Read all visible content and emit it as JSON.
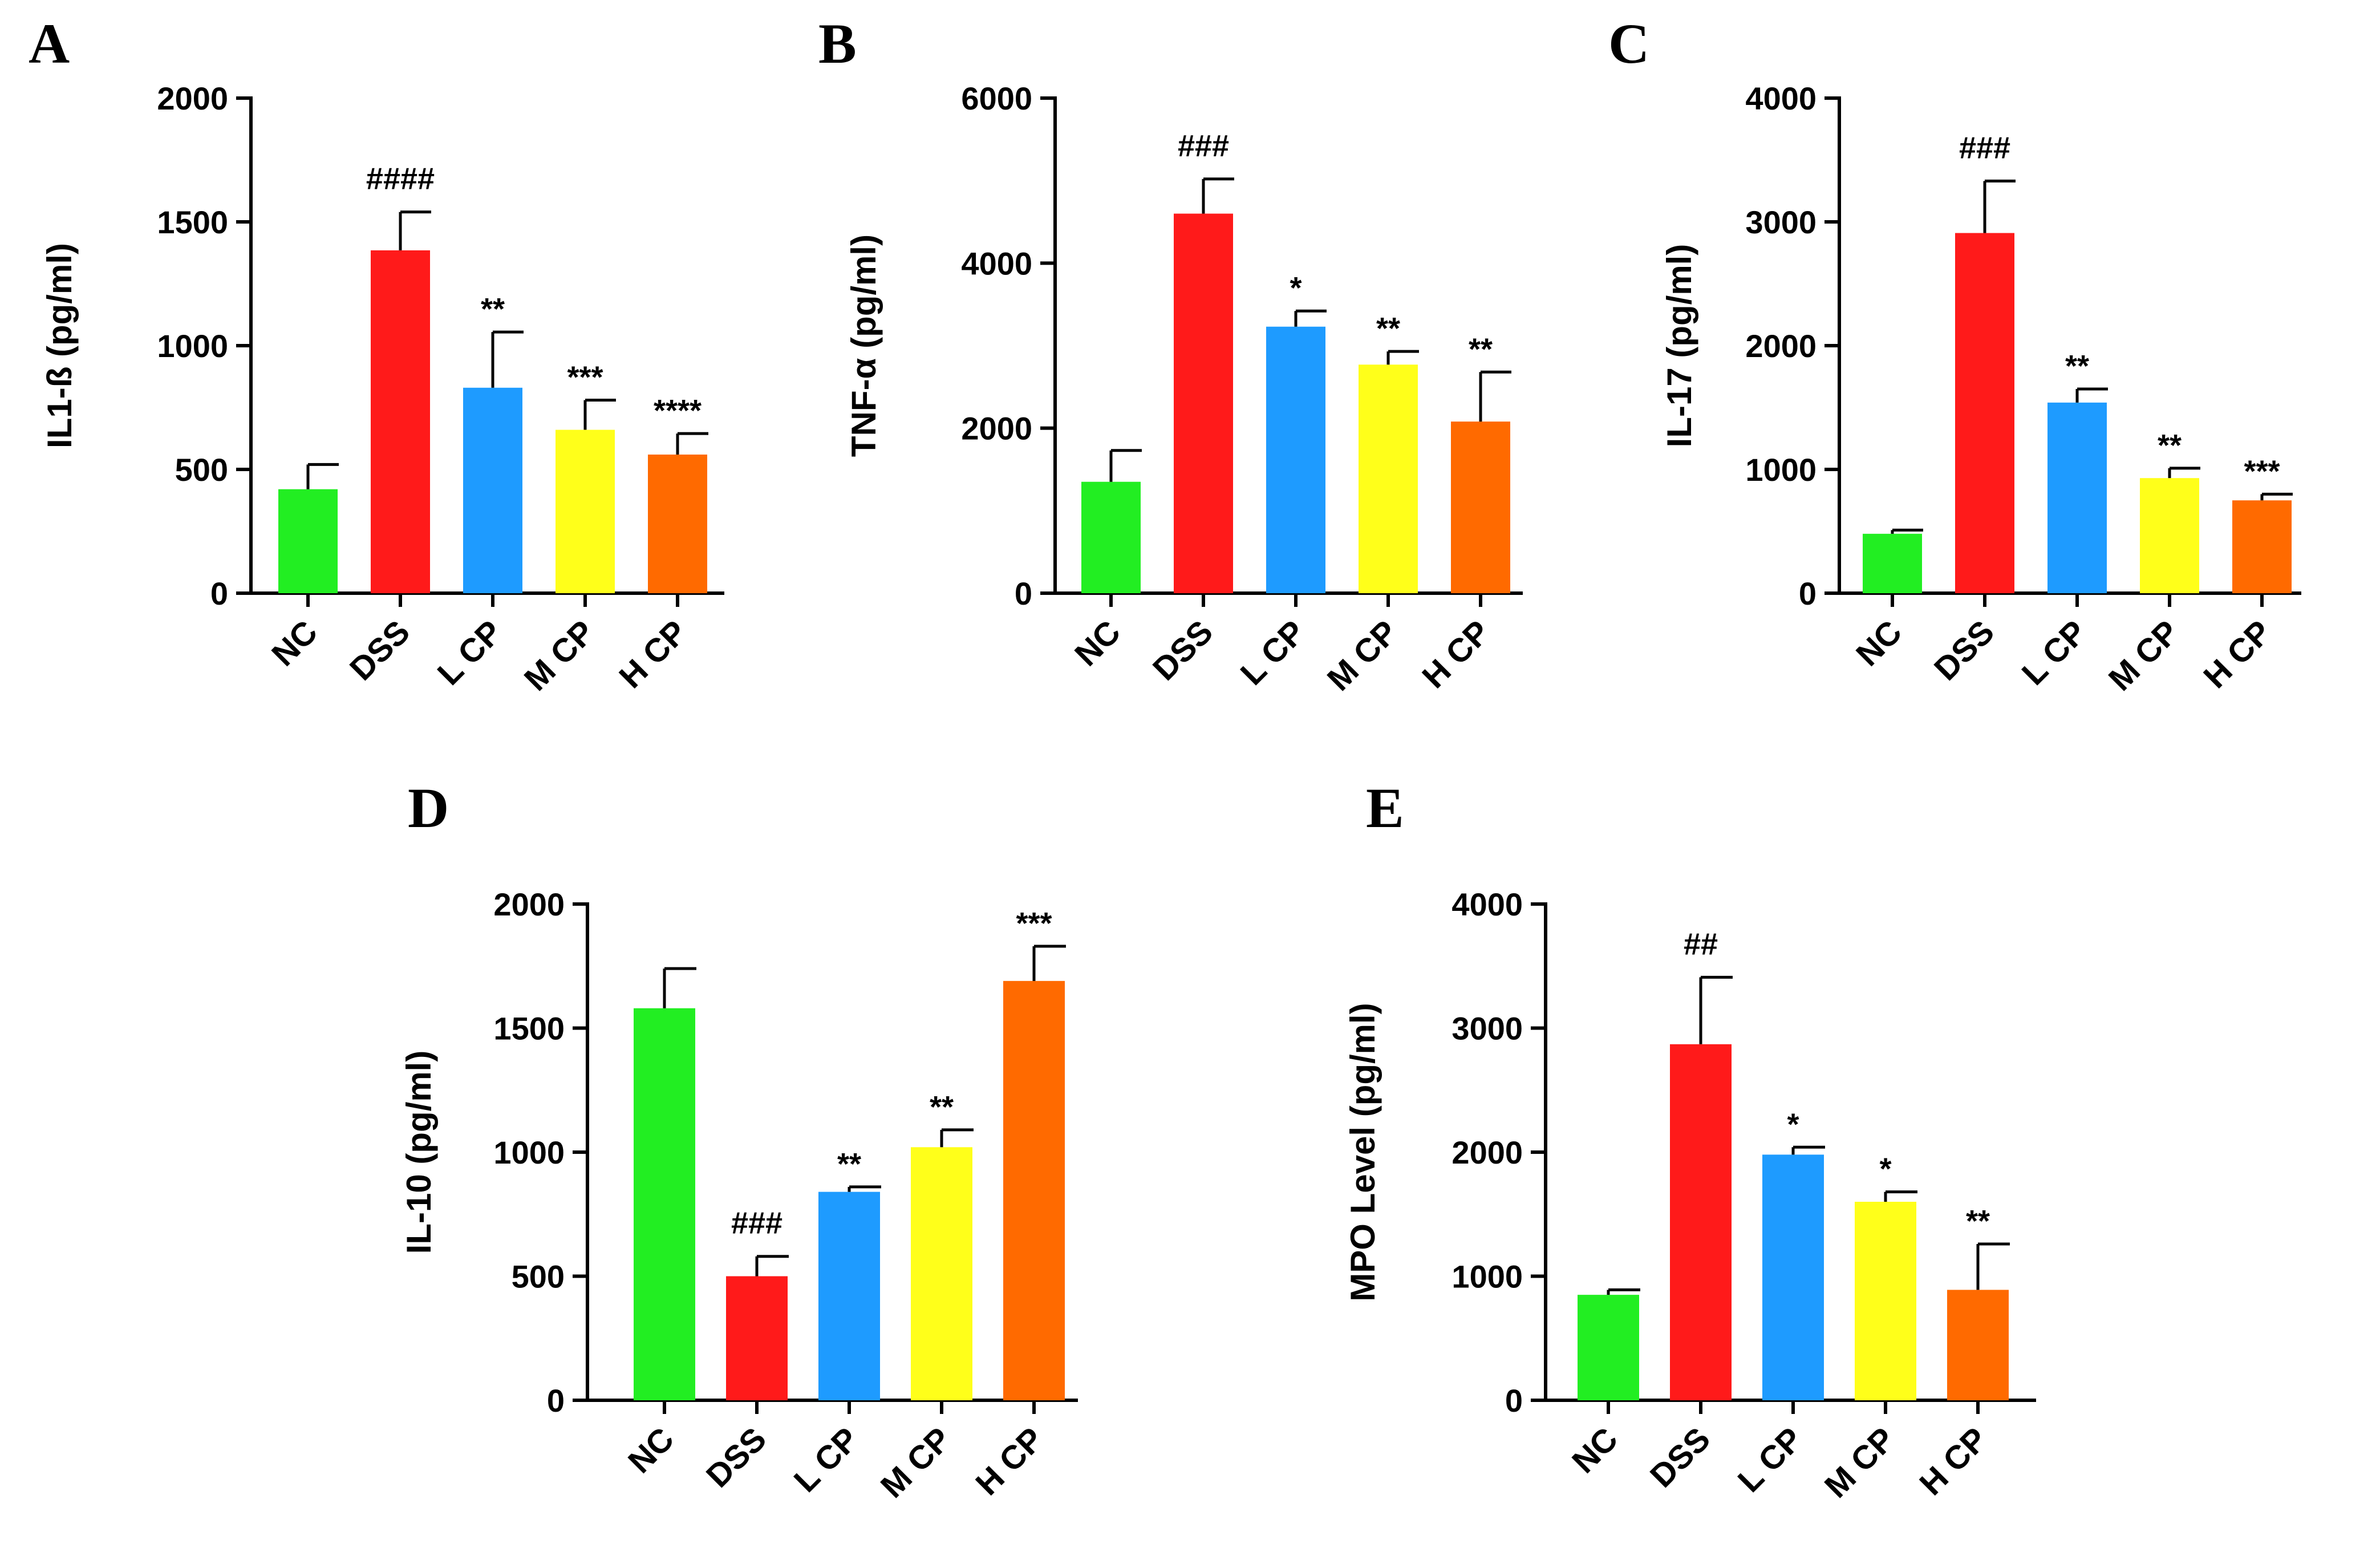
{
  "chart_data": [
    {
      "panel": "A",
      "type": "bar",
      "title": "",
      "xlabel": "",
      "ylabel": "IL1-ß (pg/ml)",
      "ylim": [
        0,
        2000
      ],
      "yticks": [
        0,
        500,
        1000,
        1500,
        2000
      ],
      "categories": [
        "NC",
        "DSS",
        "L CP",
        "M CP",
        "H CP"
      ],
      "values": [
        420,
        1385,
        830,
        660,
        560
      ],
      "errors": [
        100,
        155,
        225,
        120,
        85
      ],
      "annotations": [
        "",
        "####",
        "**",
        "***",
        "****"
      ],
      "colors": [
        "#22ee22",
        "#ff1a1a",
        "#1e9bff",
        "#ffff1a",
        "#ff6a00"
      ]
    },
    {
      "panel": "B",
      "type": "bar",
      "title": "",
      "xlabel": "",
      "ylabel": "TNF-α (pg/ml)",
      "ylim": [
        0,
        6000
      ],
      "yticks": [
        0,
        2000,
        4000,
        6000
      ],
      "categories": [
        "NC",
        "DSS",
        "L CP",
        "M CP",
        "H CP"
      ],
      "values": [
        1350,
        4600,
        3230,
        2770,
        2080
      ],
      "errors": [
        380,
        420,
        190,
        160,
        600
      ],
      "annotations": [
        "",
        "###",
        "*",
        "**",
        "**"
      ],
      "colors": [
        "#22ee22",
        "#ff1a1a",
        "#1e9bff",
        "#ffff1a",
        "#ff6a00"
      ]
    },
    {
      "panel": "C",
      "type": "bar",
      "title": "",
      "xlabel": "",
      "ylabel": "IL-17 (pg/ml)",
      "ylim": [
        0,
        4000
      ],
      "yticks": [
        0,
        1000,
        2000,
        3000,
        4000
      ],
      "categories": [
        "NC",
        "DSS",
        "L CP",
        "M CP",
        "H CP"
      ],
      "values": [
        480,
        2910,
        1540,
        930,
        750
      ],
      "errors": [
        30,
        420,
        110,
        80,
        50
      ],
      "annotations": [
        "",
        "###",
        "**",
        "**",
        "***"
      ],
      "colors": [
        "#22ee22",
        "#ff1a1a",
        "#1e9bff",
        "#ffff1a",
        "#ff6a00"
      ]
    },
    {
      "panel": "D",
      "type": "bar",
      "title": "",
      "xlabel": "",
      "ylabel": "IL-10 (pg/ml)",
      "ylim": [
        0,
        2000
      ],
      "yticks": [
        0,
        500,
        1000,
        1500,
        2000
      ],
      "categories": [
        "NC",
        "DSS",
        "L CP",
        "M CP",
        "H CP"
      ],
      "values": [
        1580,
        500,
        840,
        1020,
        1690
      ],
      "errors": [
        160,
        80,
        20,
        70,
        140
      ],
      "annotations": [
        "",
        "###",
        "**",
        "**",
        "***"
      ],
      "colors": [
        "#22ee22",
        "#ff1a1a",
        "#1e9bff",
        "#ffff1a",
        "#ff6a00"
      ]
    },
    {
      "panel": "E",
      "type": "bar",
      "title": "",
      "xlabel": "",
      "ylabel": "MPO Level (pg/ml)",
      "ylim": [
        0,
        4000
      ],
      "yticks": [
        0,
        1000,
        2000,
        3000,
        4000
      ],
      "categories": [
        "NC",
        "DSS",
        "L CP",
        "M CP",
        "H CP"
      ],
      "values": [
        850,
        2870,
        1980,
        1600,
        890
      ],
      "errors": [
        40,
        540,
        60,
        80,
        370
      ],
      "annotations": [
        "",
        "##",
        "*",
        "*",
        "**"
      ],
      "colors": [
        "#22ee22",
        "#ff1a1a",
        "#1e9bff",
        "#ffff1a",
        "#ff6a00"
      ]
    }
  ]
}
